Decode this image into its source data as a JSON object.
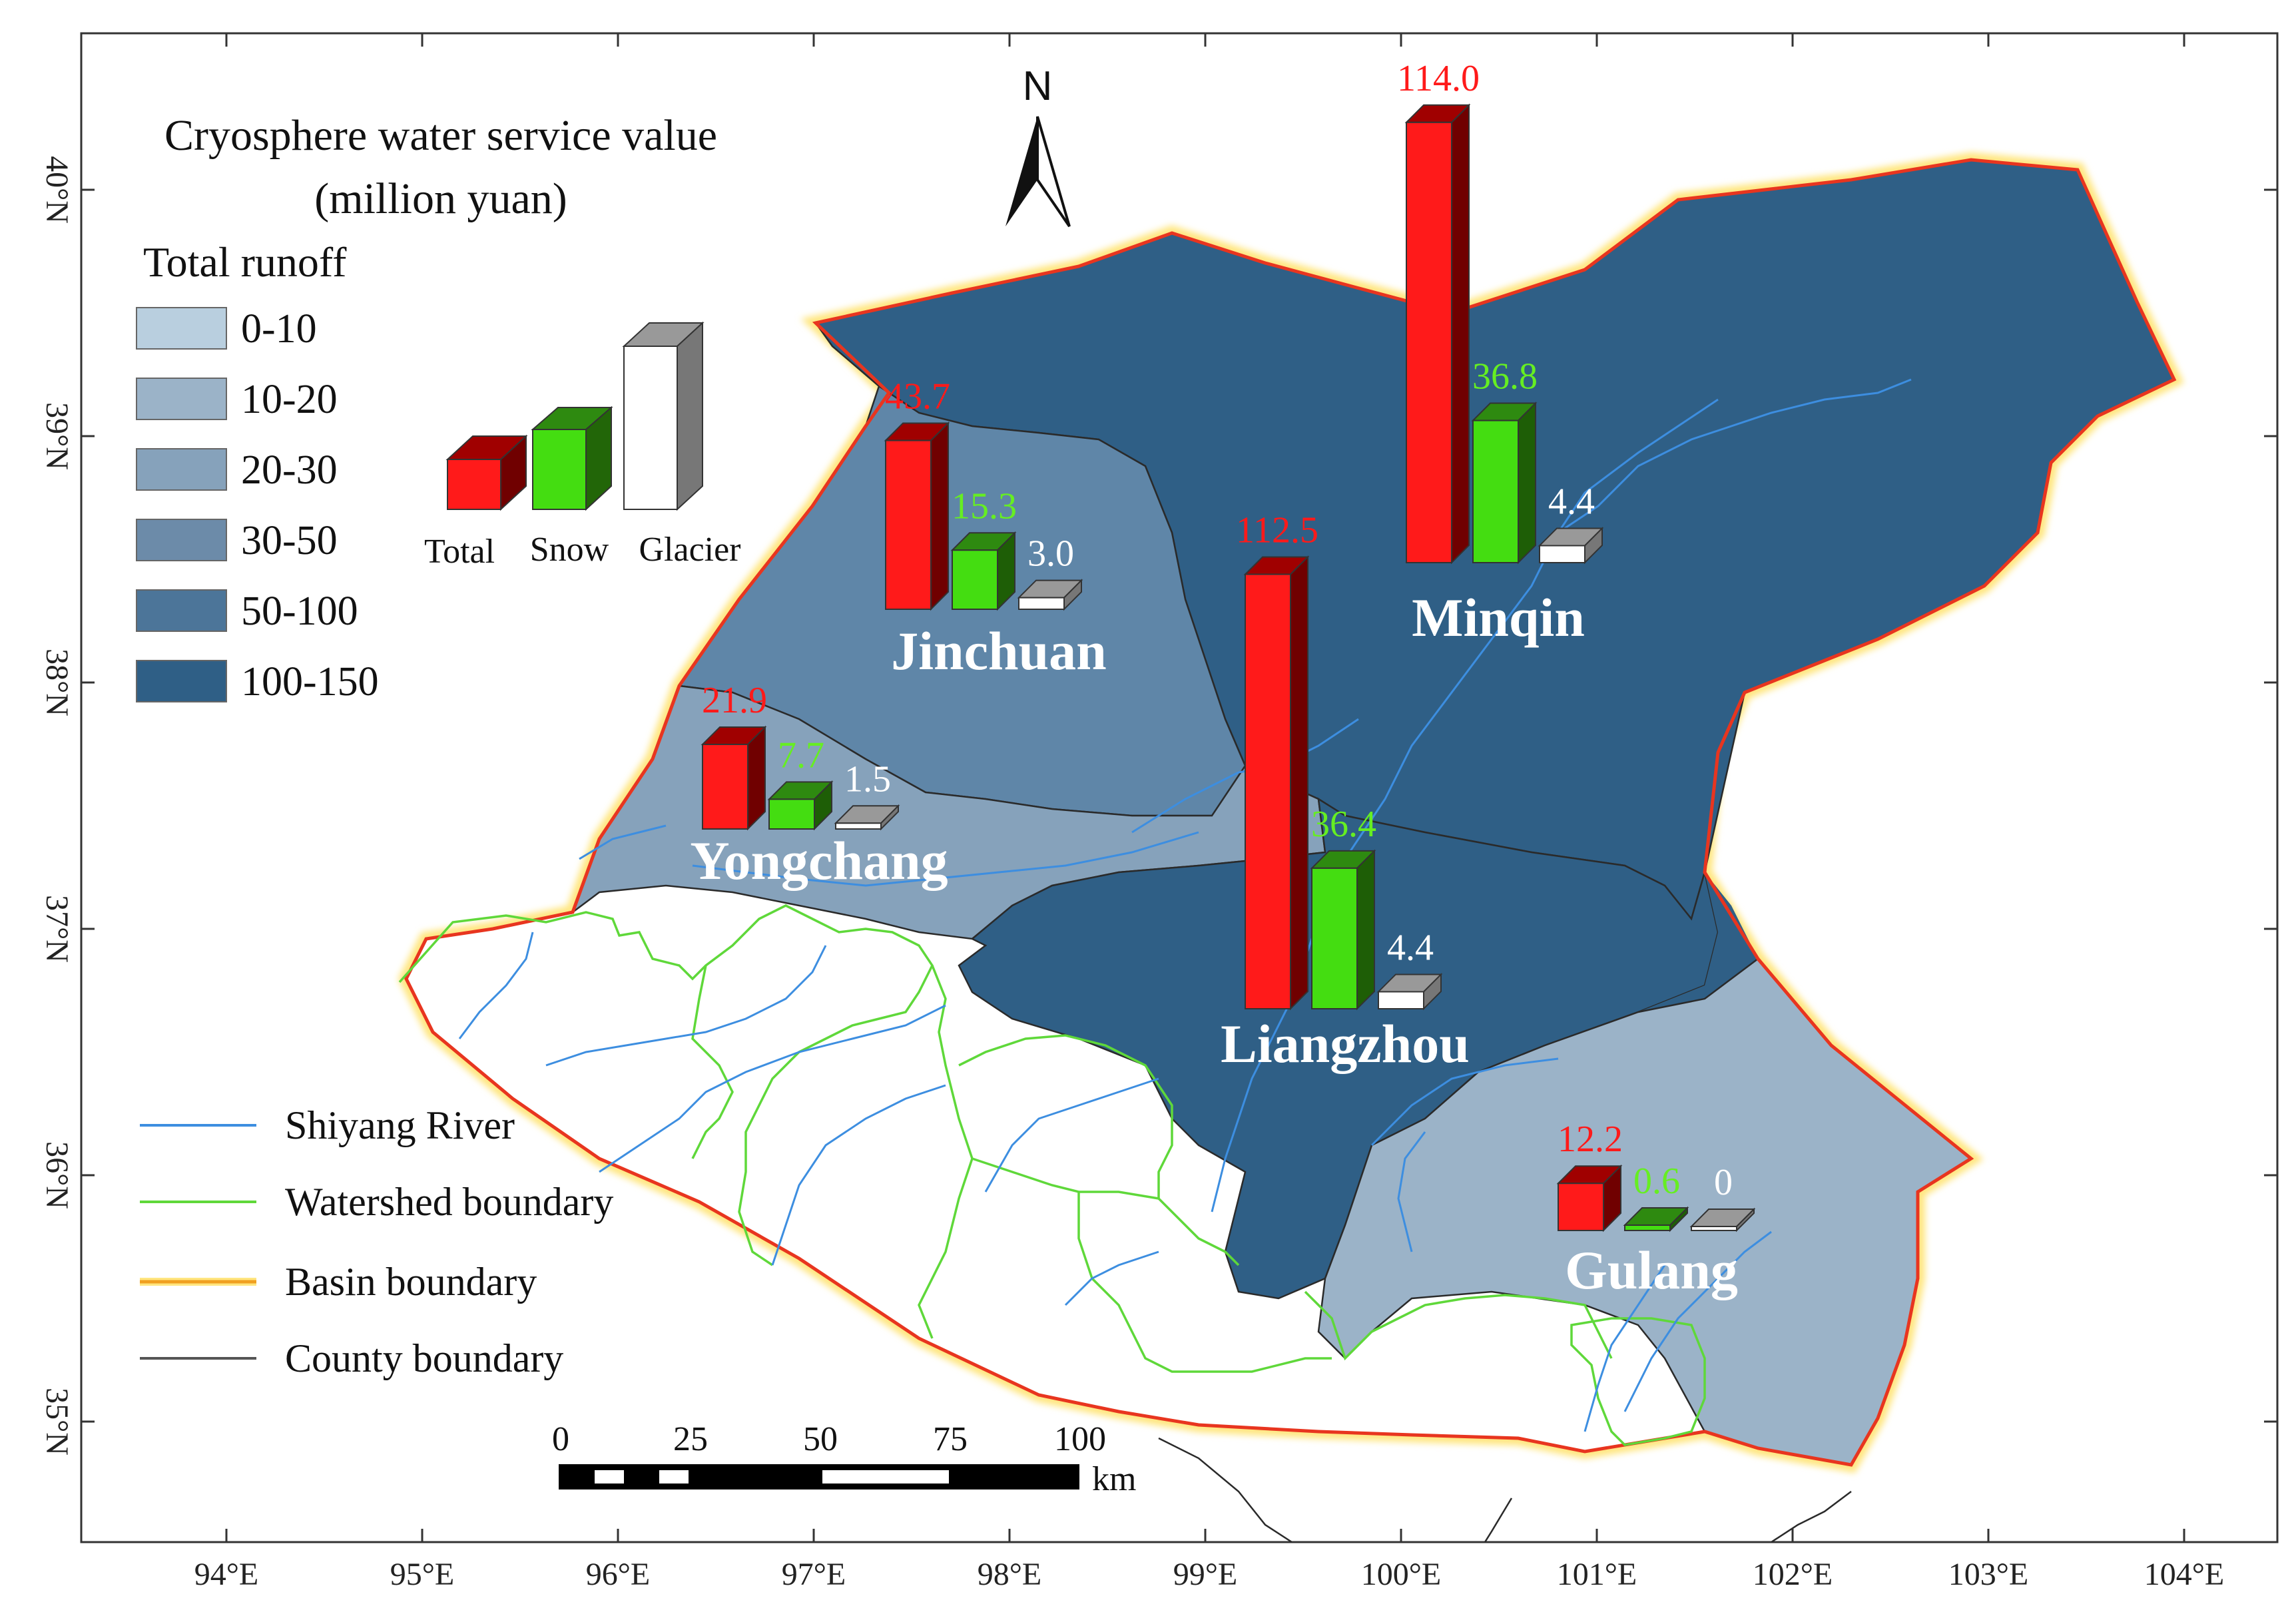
{
  "legend": {
    "title_line1": "Cryosphere water service value",
    "title_line2": "(million yuan)",
    "subtitle": "Total runoff",
    "classes": [
      {
        "label": "0-10",
        "color": "#b9cfdf"
      },
      {
        "label": "10-20",
        "color": "#9bb3c8"
      },
      {
        "label": "20-30",
        "color": "#86a2bb"
      },
      {
        "label": "30-50",
        "color": "#6c8ba9"
      },
      {
        "label": "50-100",
        "color": "#4c7599"
      },
      {
        "label": "100-150",
        "color": "#2f5f86"
      }
    ],
    "bar_key": {
      "total": "Total",
      "snow": "Snow",
      "glacier": "Glacier"
    },
    "lines": [
      {
        "label": "Shiyang River",
        "color": "#3d8ee0"
      },
      {
        "label": "Watershed boundary",
        "color": "#5fd83a"
      },
      {
        "label": "Basin boundary",
        "color": "#ffa020"
      },
      {
        "label": "County boundary",
        "color": "#555555"
      }
    ]
  },
  "north_arrow": "N",
  "scale_bar": {
    "labels": [
      "0",
      "25",
      "50",
      "75",
      "100"
    ],
    "unit": "km"
  },
  "axes": {
    "x_ticks": [
      "94°E",
      "95°E",
      "96°E",
      "97°E",
      "98°E",
      "99°E",
      "100°E",
      "101°E",
      "102°E",
      "103°E",
      "104°E"
    ],
    "y_ticks": [
      "40°N",
      "39°N",
      "38°N",
      "37°N",
      "36°N",
      "35°N"
    ]
  },
  "counties": [
    {
      "name": "Minqin",
      "total": "114.0",
      "snow": "36.8",
      "glacier": "4.4",
      "total_value": 114.0,
      "snow_value": 36.8,
      "glacier_value": 4.4
    },
    {
      "name": "Jinchuan",
      "total": "43.7",
      "snow": "15.3",
      "glacier": "3.0",
      "total_value": 43.7,
      "snow_value": 15.3,
      "glacier_value": 3.0
    },
    {
      "name": "Yongchang",
      "total": "21.9",
      "snow": "7.7",
      "glacier": "1.5",
      "total_value": 21.9,
      "snow_value": 7.7,
      "glacier_value": 1.5
    },
    {
      "name": "Liangzhou",
      "total": "112.5",
      "snow": "36.4",
      "glacier": "4.4",
      "total_value": 112.5,
      "snow_value": 36.4,
      "glacier_value": 4.4
    },
    {
      "name": "Gulang",
      "total": "12.2",
      "snow": "0.6",
      "glacier": "0",
      "total_value": 12.2,
      "snow_value": 0.6,
      "glacier_value": 0
    }
  ]
}
